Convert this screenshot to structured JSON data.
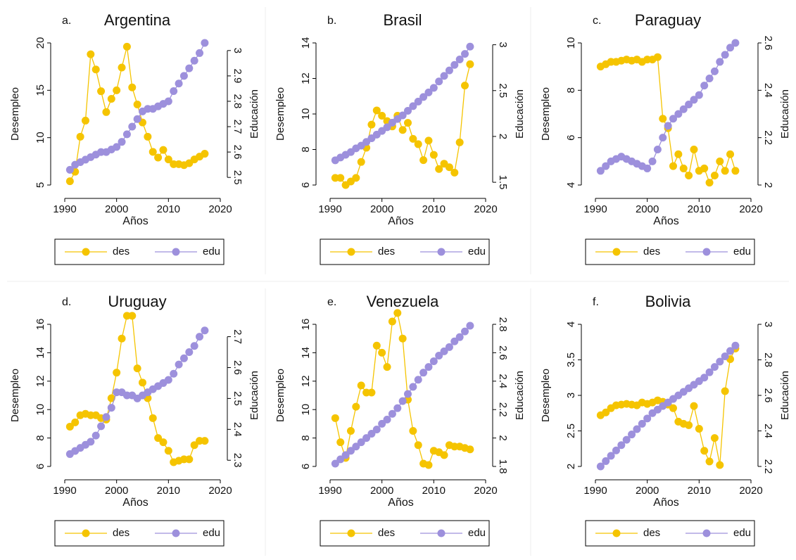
{
  "chart_data": [
    {
      "type": "line",
      "label": "a.",
      "title": "Argentina",
      "x_label": "Años",
      "y_label": "Desempleo",
      "y2_label": "Educación",
      "x": [
        1991,
        1992,
        1993,
        1994,
        1995,
        1996,
        1997,
        1998,
        1999,
        2000,
        2001,
        2002,
        2003,
        2004,
        2005,
        2006,
        2007,
        2008,
        2009,
        2010,
        2011,
        2012,
        2013,
        2014,
        2015,
        2016,
        2017
      ],
      "xlim": [
        1990,
        2020
      ],
      "xticks": [
        1990,
        2000,
        2010,
        2020
      ],
      "ylim": [
        5,
        20
      ],
      "yticks": [
        5,
        10,
        15,
        20
      ],
      "y2lim": [
        2.47,
        3.03
      ],
      "y2ticks": [
        2.5,
        2.6,
        2.7,
        2.8,
        2.9,
        3
      ],
      "series": [
        {
          "name": "des",
          "color": "#f5c400",
          "values": [
            5.4,
            6.4,
            10.1,
            11.8,
            18.8,
            17.2,
            14.9,
            12.7,
            14.1,
            15.0,
            17.4,
            19.6,
            15.3,
            13.5,
            11.6,
            10.1,
            8.5,
            7.9,
            8.7,
            7.7,
            7.2,
            7.2,
            7.1,
            7.3,
            7.7,
            8.0,
            8.3
          ]
        },
        {
          "name": "edu",
          "color": "#9d90dc",
          "axis": "y2",
          "values": [
            2.53,
            2.55,
            2.56,
            2.57,
            2.58,
            2.59,
            2.6,
            2.6,
            2.61,
            2.62,
            2.64,
            2.67,
            2.7,
            2.73,
            2.76,
            2.77,
            2.77,
            2.78,
            2.79,
            2.8,
            2.84,
            2.87,
            2.9,
            2.93,
            2.96,
            2.99,
            3.03
          ]
        }
      ]
    },
    {
      "type": "line",
      "label": "b.",
      "title": "Brasil",
      "x_label": "Años",
      "y_label": "Desempleo",
      "y2_label": "Educación",
      "x": [
        1991,
        1992,
        1993,
        1994,
        1995,
        1996,
        1997,
        1998,
        1999,
        2000,
        2001,
        2002,
        2003,
        2004,
        2005,
        2006,
        2007,
        2008,
        2009,
        2010,
        2011,
        2012,
        2013,
        2014,
        2015,
        2016,
        2017
      ],
      "xlim": [
        1990,
        2020
      ],
      "xticks": [
        1990,
        2000,
        2010,
        2020
      ],
      "ylim": [
        6,
        14
      ],
      "yticks": [
        6,
        8,
        10,
        12,
        14
      ],
      "y2lim": [
        1.47,
        3.02
      ],
      "y2ticks": [
        1.5,
        2,
        2.5,
        3
      ],
      "series": [
        {
          "name": "des",
          "color": "#f5c400",
          "values": [
            6.4,
            6.4,
            6.0,
            6.2,
            6.4,
            7.3,
            8.1,
            9.4,
            10.2,
            9.9,
            9.6,
            9.3,
            9.9,
            9.1,
            9.5,
            8.6,
            8.3,
            7.4,
            8.5,
            7.7,
            6.9,
            7.2,
            7.0,
            6.7,
            8.4,
            11.6,
            12.8
          ]
        },
        {
          "name": "edu",
          "color": "#9d90dc",
          "axis": "y2",
          "values": [
            1.74,
            1.77,
            1.8,
            1.83,
            1.87,
            1.9,
            1.94,
            1.98,
            2.02,
            2.06,
            2.1,
            2.15,
            2.19,
            2.23,
            2.28,
            2.33,
            2.38,
            2.43,
            2.48,
            2.53,
            2.6,
            2.66,
            2.72,
            2.78,
            2.84,
            2.9,
            2.98
          ]
        }
      ]
    },
    {
      "type": "line",
      "label": "c.",
      "title": "Paraguay",
      "x_label": "Años",
      "y_label": "Desempleo",
      "y2_label": "Educación",
      "x": [
        1991,
        1992,
        1993,
        1994,
        1995,
        1996,
        1997,
        1998,
        1999,
        2000,
        2001,
        2002,
        2003,
        2004,
        2005,
        2006,
        2007,
        2008,
        2009,
        2010,
        2011,
        2012,
        2013,
        2014,
        2015,
        2016,
        2017
      ],
      "xlim": [
        1990,
        2020
      ],
      "xticks": [
        1990,
        2000,
        2010,
        2020
      ],
      "ylim": [
        4,
        10
      ],
      "yticks": [
        4,
        6,
        8,
        10
      ],
      "y2lim": [
        2,
        2.6
      ],
      "y2ticks": [
        2,
        2.2,
        2.4,
        2.6
      ],
      "series": [
        {
          "name": "des",
          "color": "#f5c400",
          "values": [
            9.0,
            9.1,
            9.2,
            9.2,
            9.25,
            9.3,
            9.25,
            9.3,
            9.2,
            9.3,
            9.3,
            9.4,
            6.8,
            6.4,
            4.8,
            5.3,
            4.7,
            4.4,
            5.5,
            4.6,
            4.7,
            4.1,
            4.4,
            5.0,
            4.6,
            5.3,
            4.6
          ]
        },
        {
          "name": "edu",
          "color": "#9d90dc",
          "axis": "y2",
          "values": [
            2.06,
            2.08,
            2.1,
            2.11,
            2.12,
            2.11,
            2.1,
            2.09,
            2.08,
            2.07,
            2.1,
            2.15,
            2.2,
            2.25,
            2.28,
            2.3,
            2.32,
            2.34,
            2.36,
            2.38,
            2.42,
            2.45,
            2.48,
            2.52,
            2.55,
            2.58,
            2.6
          ]
        }
      ]
    },
    {
      "type": "line",
      "label": "d.",
      "title": "Uruguay",
      "x_label": "Años",
      "y_label": "Desempleo",
      "y2_label": "Educación",
      "x": [
        1991,
        1992,
        1993,
        1994,
        1995,
        1996,
        1997,
        1998,
        1999,
        2000,
        2001,
        2002,
        2003,
        2004,
        2005,
        2006,
        2007,
        2008,
        2009,
        2010,
        2011,
        2012,
        2013,
        2014,
        2015,
        2016,
        2017
      ],
      "xlim": [
        1990,
        2020
      ],
      "xticks": [
        1990,
        2000,
        2010,
        2020
      ],
      "ylim": [
        6,
        16
      ],
      "yticks": [
        6,
        8,
        10,
        12,
        14,
        16
      ],
      "y2lim": [
        2.28,
        2.74
      ],
      "y2ticks": [
        2.3,
        2.4,
        2.5,
        2.6,
        2.7
      ],
      "series": [
        {
          "name": "des",
          "color": "#f5c400",
          "values": [
            8.8,
            9.1,
            9.6,
            9.7,
            9.6,
            9.6,
            9.4,
            9.3,
            10.8,
            12.6,
            15.0,
            16.6,
            16.6,
            12.9,
            11.9,
            10.8,
            9.4,
            8.0,
            7.7,
            7.1,
            6.3,
            6.4,
            6.5,
            6.5,
            7.5,
            7.8,
            7.8
          ]
        },
        {
          "name": "edu",
          "color": "#9d90dc",
          "axis": "y2",
          "values": [
            2.32,
            2.33,
            2.34,
            2.35,
            2.36,
            2.38,
            2.41,
            2.44,
            2.47,
            2.52,
            2.52,
            2.51,
            2.51,
            2.5,
            2.51,
            2.52,
            2.53,
            2.54,
            2.55,
            2.56,
            2.58,
            2.61,
            2.63,
            2.65,
            2.67,
            2.7,
            2.72
          ]
        }
      ]
    },
    {
      "type": "line",
      "label": "e.",
      "title": "Venezuela",
      "x_label": "Años",
      "y_label": "Desempleo",
      "y2_label": "Educación",
      "x": [
        1991,
        1992,
        1993,
        1994,
        1995,
        1996,
        1997,
        1998,
        1999,
        2000,
        2001,
        2002,
        2003,
        2004,
        2005,
        2006,
        2007,
        2008,
        2009,
        2010,
        2011,
        2012,
        2013,
        2014,
        2015,
        2016,
        2017
      ],
      "xlim": [
        1990,
        2020
      ],
      "xticks": [
        1990,
        2000,
        2010,
        2020
      ],
      "ylim": [
        6,
        16
      ],
      "yticks": [
        6,
        8,
        10,
        12,
        14,
        16
      ],
      "y2lim": [
        1.8,
        2.8
      ],
      "y2ticks": [
        1.8,
        2,
        2.2,
        2.4,
        2.6,
        2.8
      ],
      "series": [
        {
          "name": "des",
          "color": "#f5c400",
          "values": [
            9.4,
            7.7,
            6.6,
            8.5,
            10.2,
            11.7,
            11.2,
            11.2,
            14.5,
            14.0,
            13.0,
            16.2,
            16.8,
            15.0,
            10.7,
            8.5,
            7.5,
            6.2,
            6.1,
            7.1,
            7.0,
            6.8,
            7.5,
            7.4,
            7.4,
            7.3,
            7.2
          ]
        },
        {
          "name": "edu",
          "color": "#9d90dc",
          "axis": "y2",
          "values": [
            1.82,
            1.85,
            1.88,
            1.91,
            1.94,
            1.97,
            2.0,
            2.03,
            2.06,
            2.1,
            2.13,
            2.17,
            2.21,
            2.26,
            2.31,
            2.36,
            2.41,
            2.46,
            2.5,
            2.54,
            2.58,
            2.61,
            2.64,
            2.68,
            2.71,
            2.75,
            2.79
          ]
        }
      ]
    },
    {
      "type": "line",
      "label": "f.",
      "title": "Bolivia",
      "x_label": "Años",
      "y_label": "Desempleo",
      "y2_label": "Educación",
      "x": [
        1991,
        1992,
        1993,
        1994,
        1995,
        1996,
        1997,
        1998,
        1999,
        2000,
        2001,
        2002,
        2003,
        2004,
        2005,
        2006,
        2007,
        2008,
        2009,
        2010,
        2011,
        2012,
        2013,
        2014,
        2015,
        2016,
        2017
      ],
      "xlim": [
        1990,
        2020
      ],
      "xticks": [
        1990,
        2000,
        2010,
        2020
      ],
      "ylim": [
        2,
        4
      ],
      "yticks": [
        2,
        2.5,
        3,
        3.5,
        4
      ],
      "y2lim": [
        2.2,
        3.0
      ],
      "y2ticks": [
        2.2,
        2.4,
        2.6,
        2.8,
        3
      ],
      "series": [
        {
          "name": "des",
          "color": "#f5c400",
          "values": [
            2.72,
            2.76,
            2.82,
            2.86,
            2.87,
            2.88,
            2.87,
            2.86,
            2.9,
            2.88,
            2.9,
            2.93,
            2.91,
            2.87,
            2.82,
            2.63,
            2.6,
            2.58,
            2.85,
            2.53,
            2.22,
            2.07,
            2.4,
            2.02,
            3.06,
            3.51,
            3.66
          ]
        },
        {
          "name": "edu",
          "color": "#9d90dc",
          "axis": "y2",
          "values": [
            2.2,
            2.23,
            2.26,
            2.29,
            2.32,
            2.35,
            2.38,
            2.41,
            2.44,
            2.47,
            2.5,
            2.52,
            2.54,
            2.56,
            2.58,
            2.6,
            2.62,
            2.64,
            2.66,
            2.68,
            2.7,
            2.73,
            2.76,
            2.79,
            2.82,
            2.85,
            2.88
          ]
        }
      ]
    }
  ]
}
